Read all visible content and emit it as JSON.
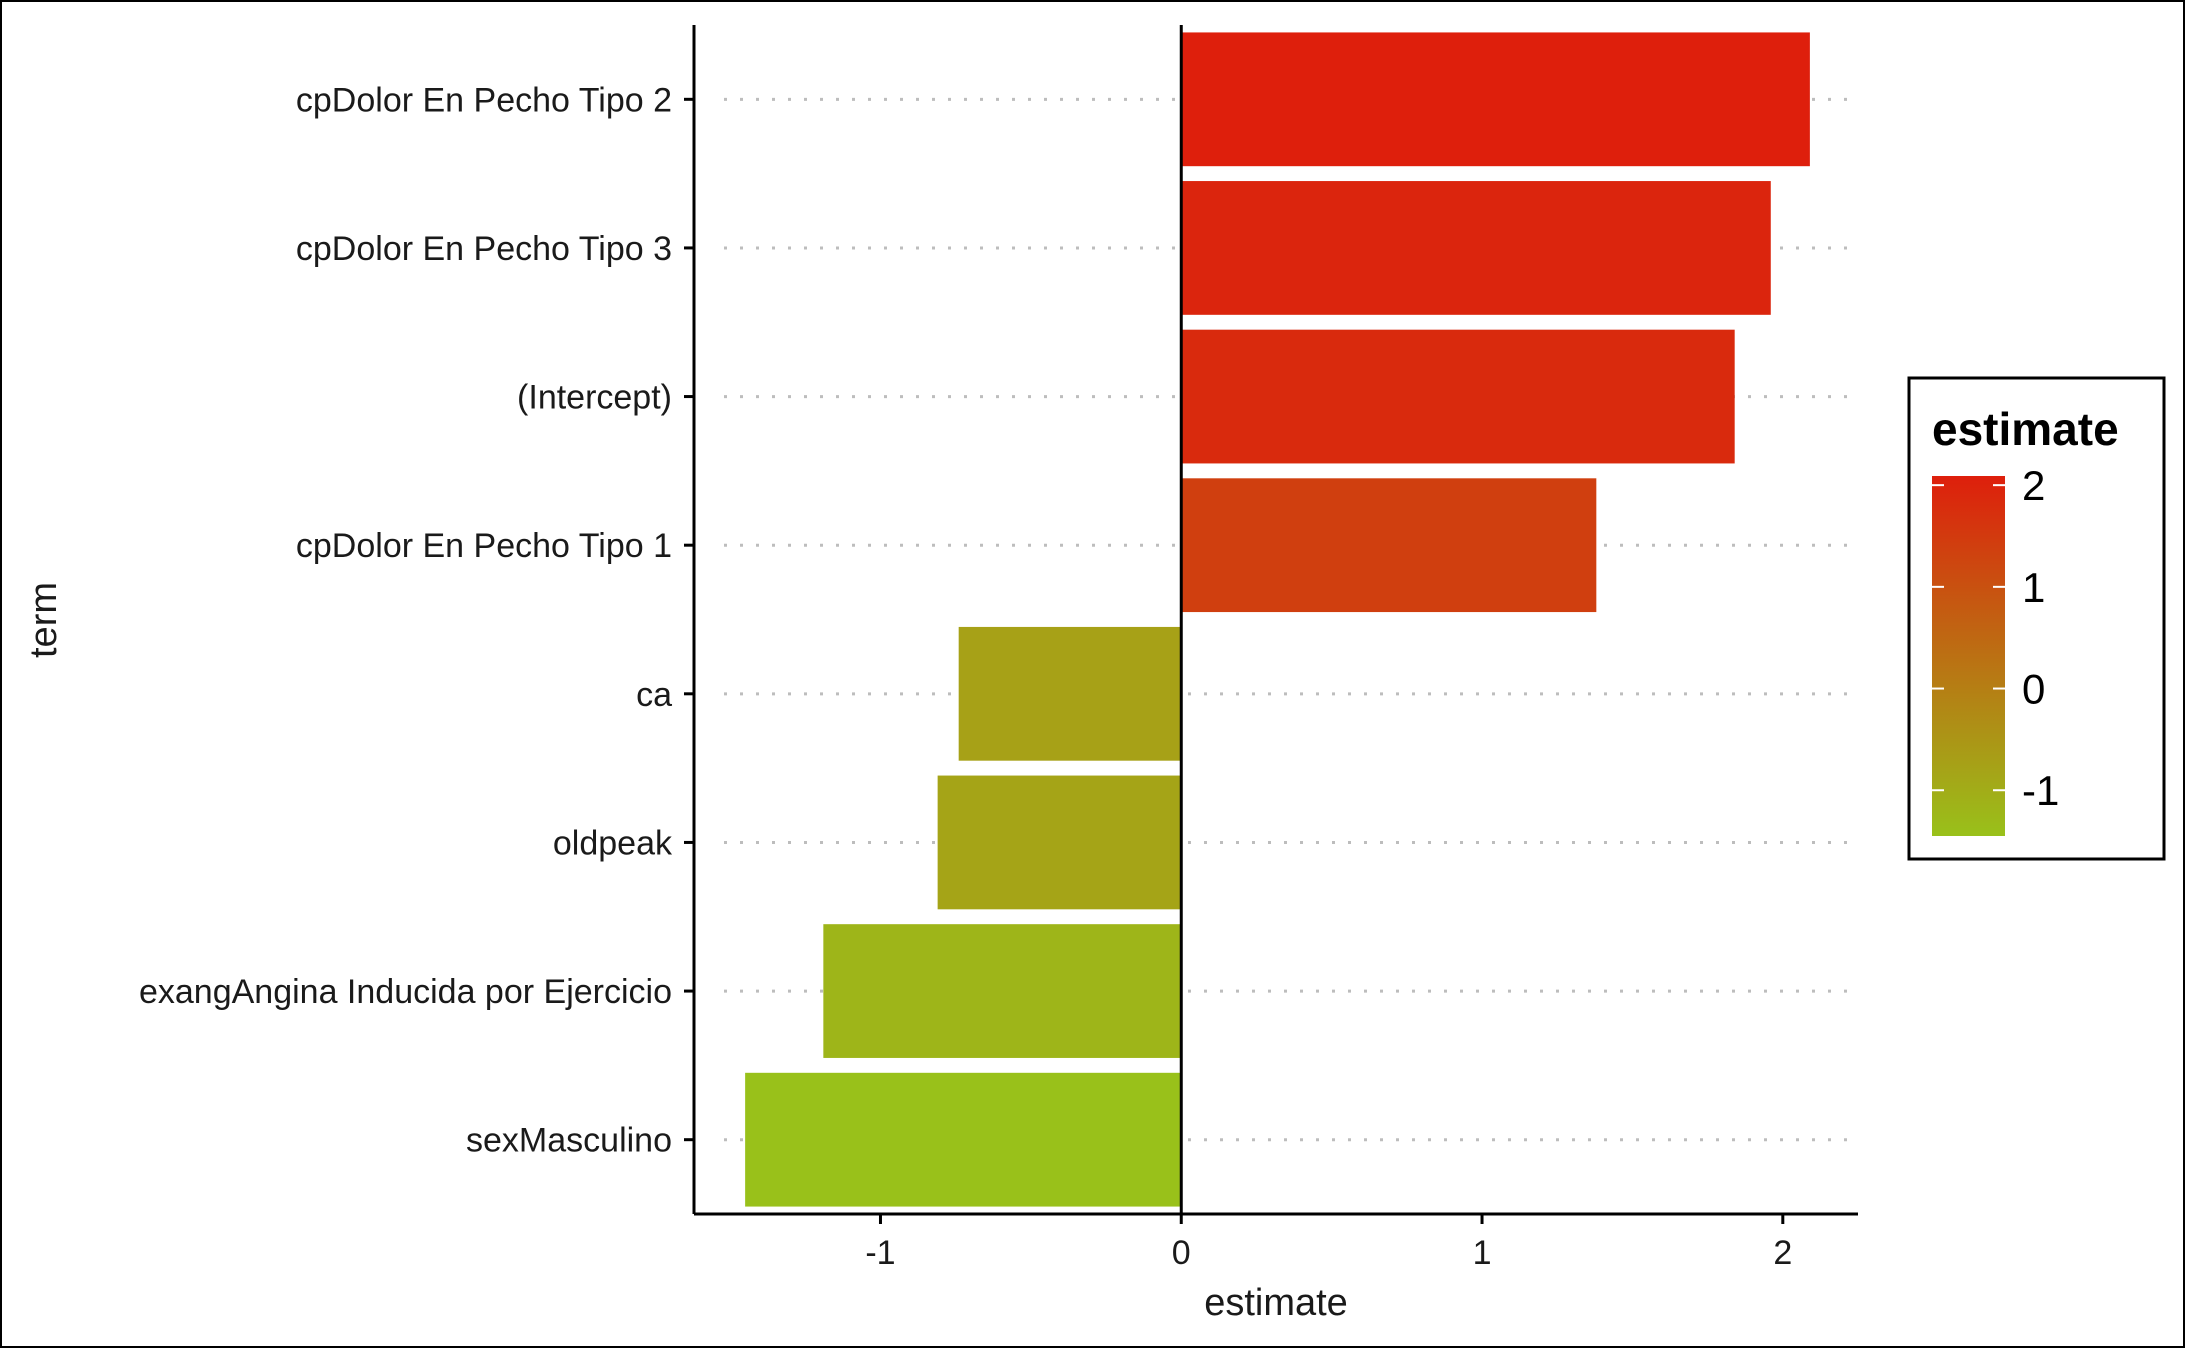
{
  "chart_data": {
    "type": "bar",
    "orientation": "horizontal",
    "categories": [
      "cpDolor En Pecho Tipo 2",
      "cpDolor En Pecho Tipo 3",
      "(Intercept)",
      "cpDolor En Pecho Tipo 1",
      "ca",
      "oldpeak",
      "exangAngina Inducida por Ejercicio",
      "sexMasculino"
    ],
    "values": [
      2.09,
      1.96,
      1.84,
      1.38,
      -0.74,
      -0.81,
      -1.19,
      -1.45
    ],
    "xlabel": "estimate",
    "ylabel": "term",
    "xlim": [
      -1.62,
      2.25
    ],
    "x_ticks": [
      -1,
      0,
      1,
      2
    ],
    "x_tick_labels": [
      "-1",
      "0",
      "1",
      "2"
    ],
    "grid": "dotted horizontal lines at each term",
    "reference_line": 0,
    "legend": {
      "title": "estimate",
      "position": "right",
      "type": "colorbar",
      "ticks": [
        2,
        1,
        0,
        -1
      ],
      "tick_labels": [
        "2",
        "1",
        "0",
        "-1"
      ],
      "range": [
        -1.45,
        2.09
      ],
      "low_color": "#99c11a",
      "high_color": "#de1f0c"
    }
  }
}
